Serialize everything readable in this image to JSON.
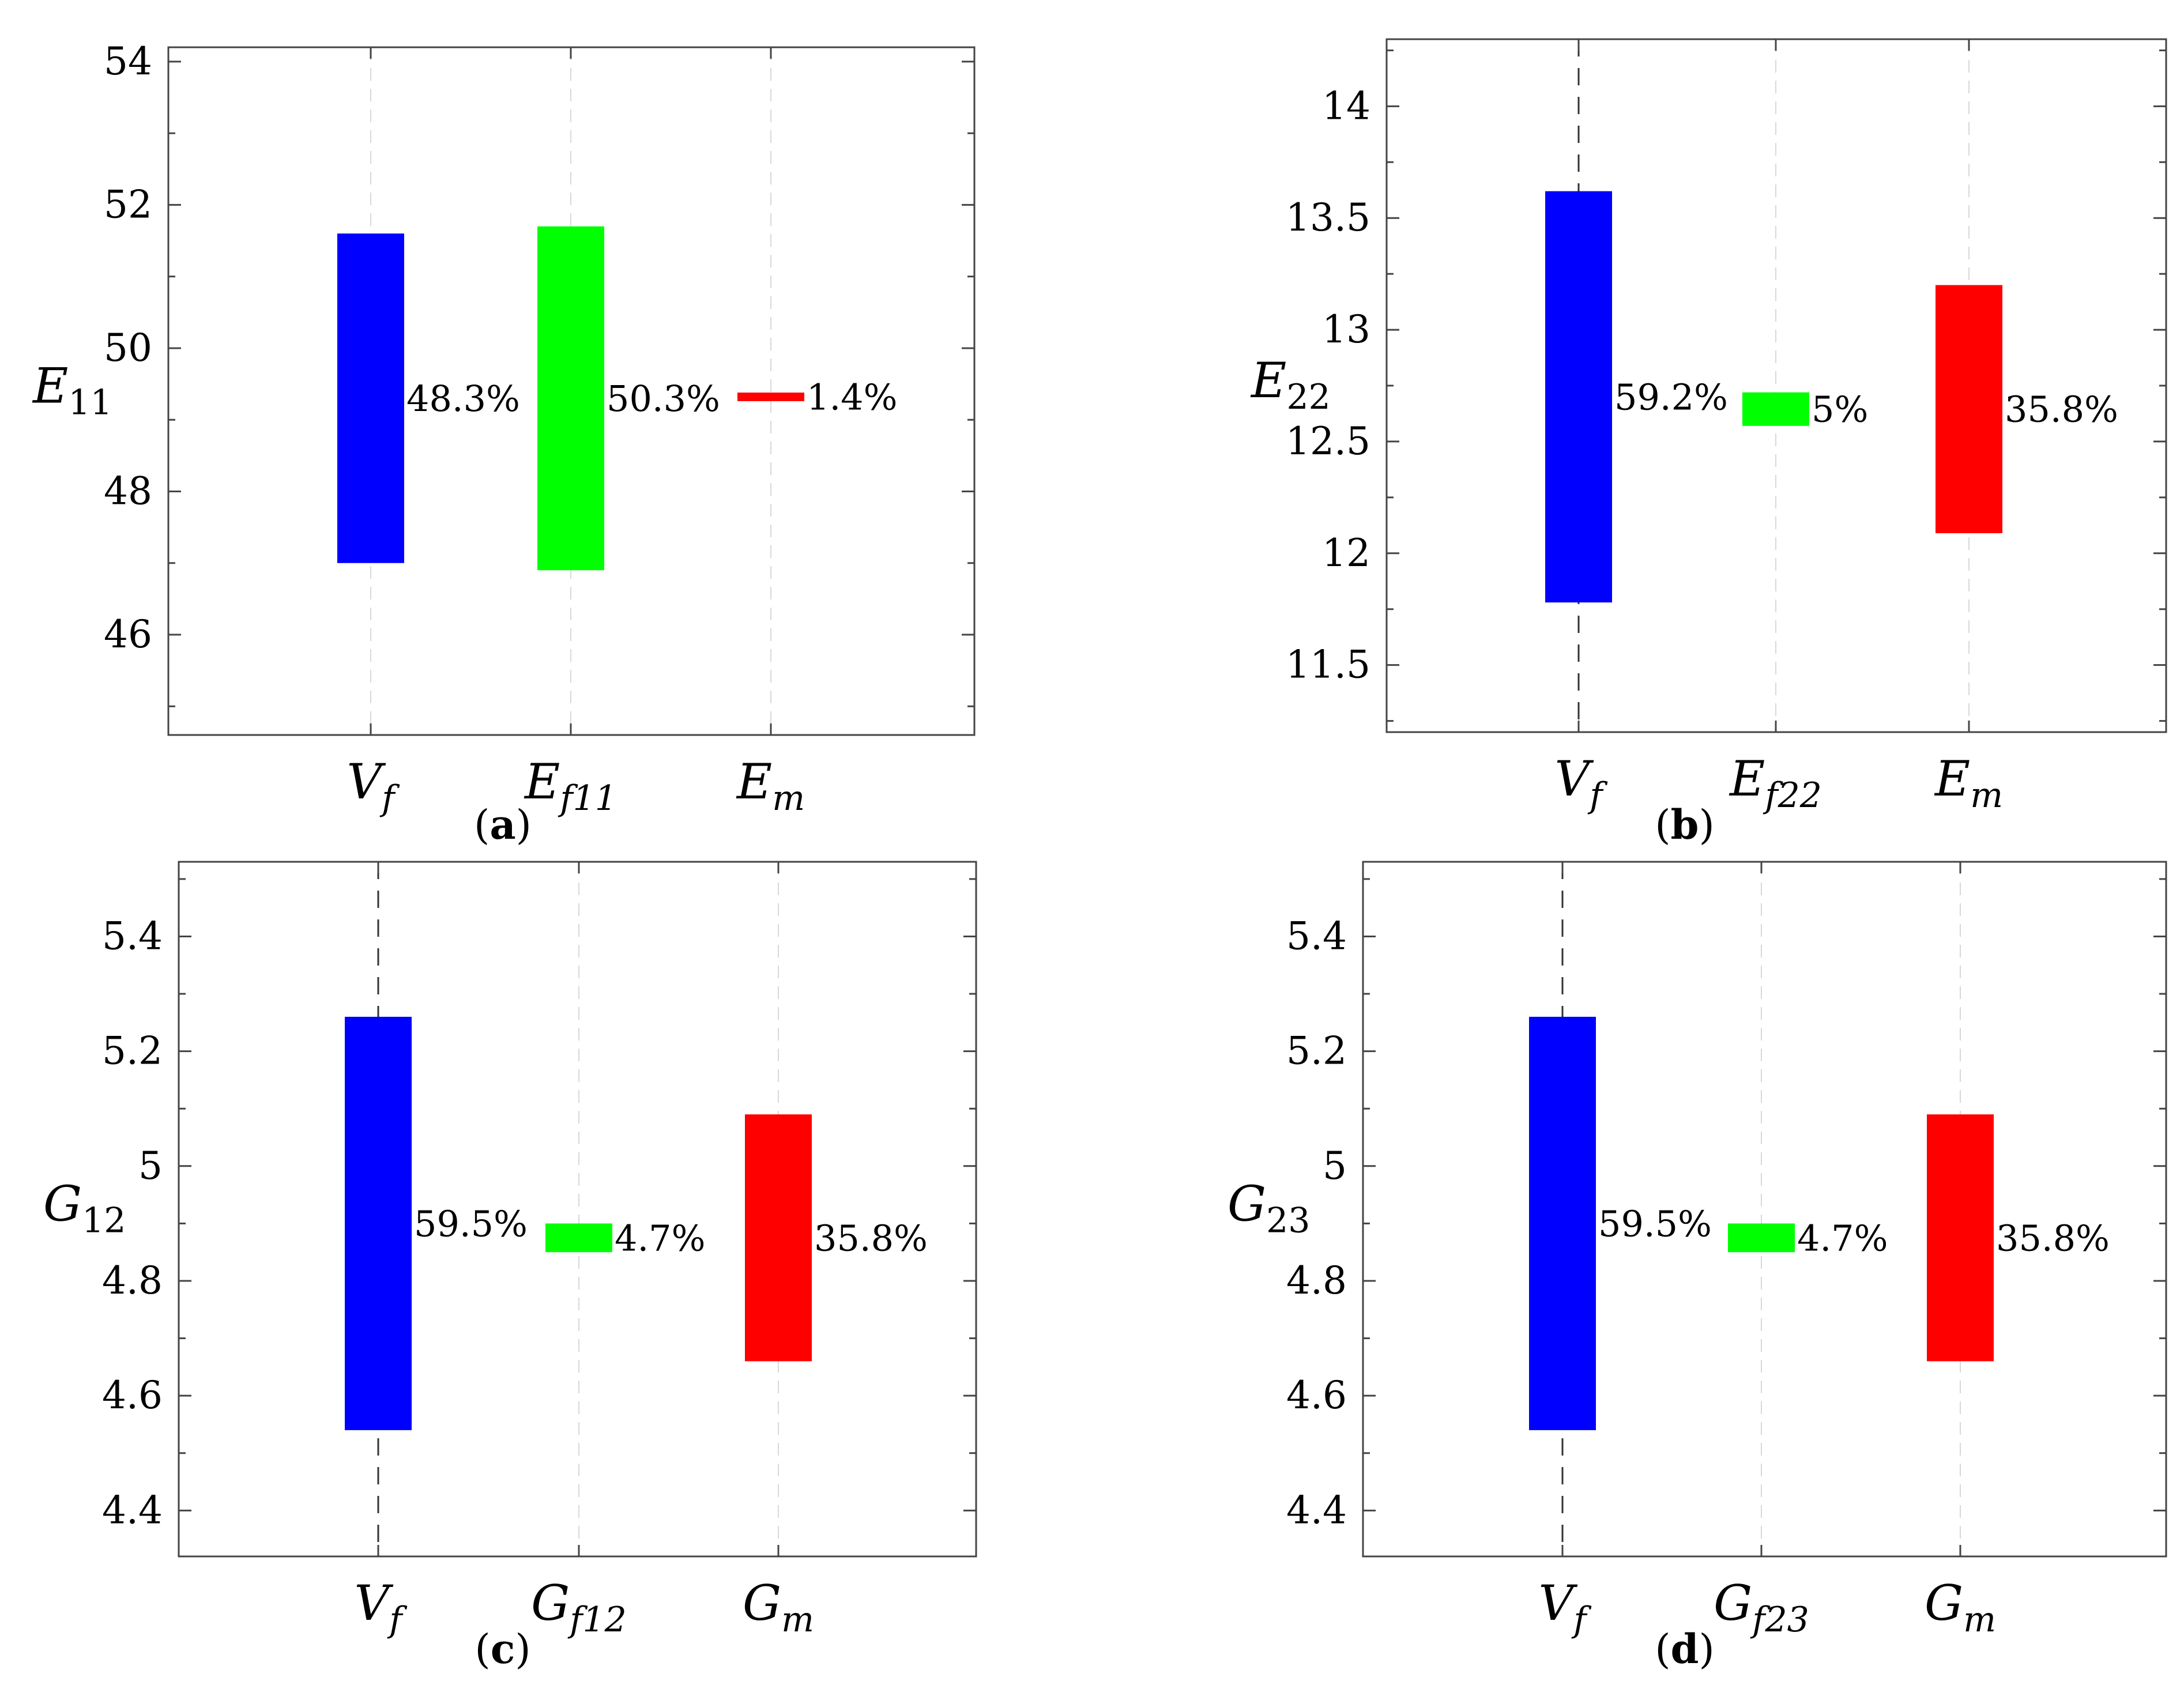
{
  "chart_data": [
    {
      "type": "bar",
      "caption": "a",
      "ylabel": {
        "main": "E",
        "sub": "11"
      },
      "ylim": [
        44.6,
        54.2
      ],
      "yticks": [
        46,
        48,
        50,
        52,
        54
      ],
      "categories": [
        {
          "main": "V",
          "sub": "f"
        },
        {
          "main": "E",
          "sub": "f11"
        },
        {
          "main": "E",
          "sub": "m"
        }
      ],
      "bars": [
        {
          "low": 47.0,
          "high": 51.6,
          "label": "48.3%",
          "color": "#0000ff",
          "whisker": false
        },
        {
          "low": 46.9,
          "high": 51.7,
          "label": "50.3%",
          "color": "#00ff00",
          "whisker": false
        },
        {
          "low": 49.26,
          "high": 49.38,
          "label": "1.4%",
          "color": "#ff0000",
          "whisker": false
        }
      ]
    },
    {
      "type": "bar",
      "caption": "b",
      "ylabel": {
        "main": "E",
        "sub": "22"
      },
      "ylim": [
        11.2,
        14.3
      ],
      "yticks": [
        11.5,
        12,
        12.5,
        13,
        13.5,
        14
      ],
      "categories": [
        {
          "main": "V",
          "sub": "f"
        },
        {
          "main": "E",
          "sub": "f22"
        },
        {
          "main": "E",
          "sub": "m"
        }
      ],
      "bars": [
        {
          "low": 11.78,
          "high": 13.62,
          "label": "59.2%",
          "color": "#0000ff",
          "whisker": true
        },
        {
          "low": 12.57,
          "high": 12.72,
          "label": "5%",
          "color": "#00ff00",
          "whisker": false
        },
        {
          "low": 12.09,
          "high": 13.2,
          "label": "35.8%",
          "color": "#ff0000",
          "whisker": false
        }
      ]
    },
    {
      "type": "bar",
      "caption": "c",
      "ylabel": {
        "main": "G",
        "sub": "12"
      },
      "ylim": [
        4.32,
        5.53
      ],
      "yticks": [
        4.4,
        4.6,
        4.8,
        5,
        5.2,
        5.4
      ],
      "categories": [
        {
          "main": "V",
          "sub": "f"
        },
        {
          "main": "G",
          "sub": "f12"
        },
        {
          "main": "G",
          "sub": "m"
        }
      ],
      "bars": [
        {
          "low": 4.54,
          "high": 5.26,
          "label": "59.5%",
          "color": "#0000ff",
          "whisker": true
        },
        {
          "low": 4.85,
          "high": 4.9,
          "label": "4.7%",
          "color": "#00ff00",
          "whisker": false
        },
        {
          "low": 4.66,
          "high": 5.09,
          "label": "35.8%",
          "color": "#ff0000",
          "whisker": false
        }
      ]
    },
    {
      "type": "bar",
      "caption": "d",
      "ylabel": {
        "main": "G",
        "sub": "23"
      },
      "ylim": [
        4.32,
        5.53
      ],
      "yticks": [
        4.4,
        4.6,
        4.8,
        5,
        5.2,
        5.4
      ],
      "categories": [
        {
          "main": "V",
          "sub": "f"
        },
        {
          "main": "G",
          "sub": "f23"
        },
        {
          "main": "G",
          "sub": "m"
        }
      ],
      "bars": [
        {
          "low": 4.54,
          "high": 5.26,
          "label": "59.5%",
          "color": "#0000ff",
          "whisker": true
        },
        {
          "low": 4.85,
          "high": 4.9,
          "label": "4.7%",
          "color": "#00ff00",
          "whisker": false
        },
        {
          "low": 4.66,
          "high": 5.09,
          "label": "35.8%",
          "color": "#ff0000",
          "whisker": false
        }
      ]
    }
  ]
}
